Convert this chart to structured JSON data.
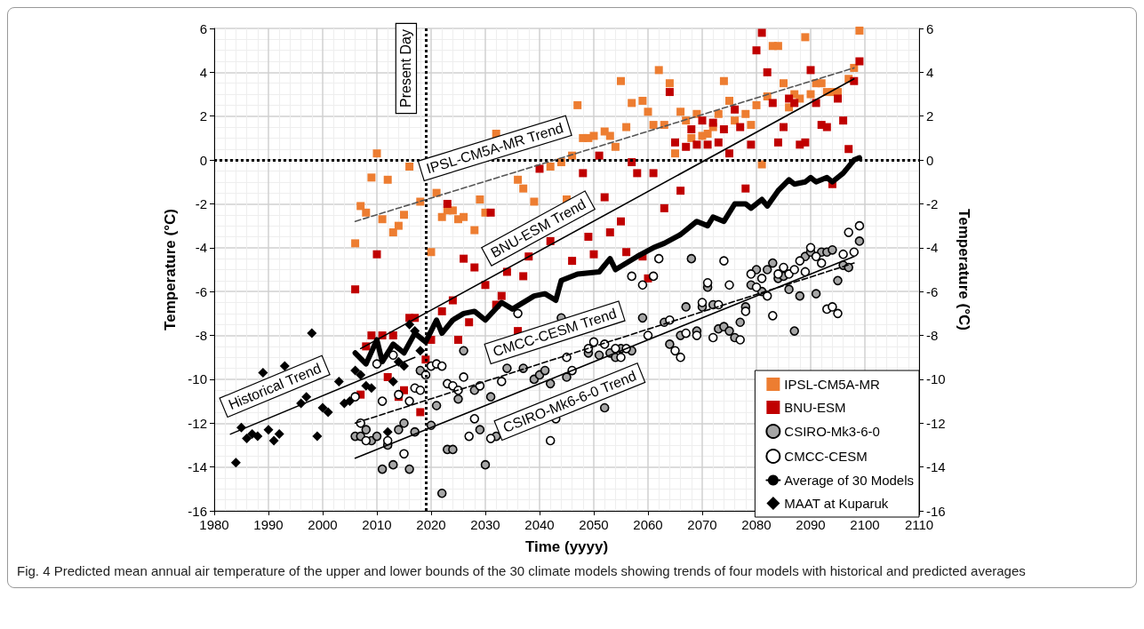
{
  "chart_data": {
    "type": "scatter",
    "xlabel": "Time (yyyy)",
    "ylabel": "Temperature (°C)",
    "y2label": "Temperature (°C)",
    "xlim": [
      1980,
      2110
    ],
    "xticks": [
      1980,
      1990,
      2000,
      2010,
      2020,
      2030,
      2040,
      2050,
      2060,
      2070,
      2080,
      2090,
      2100,
      2110
    ],
    "ylim": [
      -16,
      6
    ],
    "yticks": [
      -16,
      -14,
      -12,
      -10,
      -8,
      -6,
      -4,
      -2,
      0,
      2,
      4,
      6
    ],
    "y2lim": [
      -16,
      6
    ],
    "y2ticks": [
      -16,
      -14,
      -12,
      -10,
      -8,
      -6,
      -4,
      -2,
      0,
      2,
      4,
      6
    ],
    "grid": true,
    "legend": "bottom right",
    "series": [
      {
        "name": "IPSL-CM5A-MR",
        "marker": "square",
        "color": "#ed7d31",
        "x": [
          2006,
          2007,
          2008,
          2009,
          2010,
          2011,
          2012,
          2013,
          2014,
          2015,
          2016,
          2018,
          2020,
          2021,
          2022,
          2023,
          2024,
          2025,
          2026,
          2028,
          2029,
          2030,
          2031,
          2032,
          2036,
          2037,
          2039,
          2042,
          2044,
          2045,
          2046,
          2047,
          2048,
          2049,
          2050,
          2052,
          2053,
          2054,
          2055,
          2056,
          2057,
          2059,
          2060,
          2061,
          2062,
          2063,
          2064,
          2065,
          2066,
          2067,
          2068,
          2069,
          2070,
          2071,
          2072,
          2073,
          2074,
          2075,
          2076,
          2078,
          2079,
          2080,
          2081,
          2082,
          2083,
          2084,
          2085,
          2086,
          2087,
          2088,
          2089,
          2090,
          2091,
          2092,
          2093,
          2094,
          2095,
          2097,
          2098,
          2099
        ],
        "values": [
          -3.8,
          -2.1,
          -2.4,
          -0.8,
          0.3,
          -2.7,
          -0.9,
          -3.3,
          -3.0,
          -2.5,
          -0.3,
          -1.9,
          -4.2,
          -1.5,
          -2.6,
          -2.3,
          -2.3,
          -2.7,
          -2.6,
          -3.2,
          -1.8,
          -2.4,
          null,
          1.2,
          -0.9,
          -1.3,
          -1.9,
          -0.3,
          -0.1,
          -1.8,
          0.2,
          2.5,
          1.0,
          1.0,
          1.1,
          1.3,
          1.1,
          0.6,
          3.6,
          1.5,
          2.6,
          2.7,
          2.2,
          1.6,
          4.1,
          1.6,
          3.5,
          0.3,
          2.2,
          1.8,
          1.0,
          2.1,
          1.1,
          1.2,
          1.5,
          2.1,
          3.6,
          2.7,
          1.8,
          2.1,
          1.6,
          2.5,
          -0.2,
          2.9,
          5.2,
          5.2,
          3.5,
          2.4,
          3.0,
          2.8,
          5.6,
          3.0,
          3.5,
          3.5,
          3.1,
          3.1,
          3.1,
          3.7,
          4.2,
          5.9
        ]
      },
      {
        "name": "BNU-ESM",
        "marker": "square",
        "color": "#c00000",
        "x": [
          2006,
          2007,
          2008,
          2009,
          2010,
          2011,
          2012,
          2013,
          2014,
          2015,
          2016,
          2017,
          2018,
          2019,
          2020,
          2022,
          2023,
          2024,
          2025,
          2026,
          2027,
          2028,
          2030,
          2031,
          2032,
          2033,
          2034,
          2036,
          2037,
          2038,
          2040,
          2042,
          2046,
          2048,
          2049,
          2050,
          2051,
          2052,
          2053,
          2055,
          2056,
          2057,
          2058,
          2059,
          2060,
          2061,
          2063,
          2064,
          2065,
          2066,
          2067,
          2068,
          2069,
          2070,
          2071,
          2072,
          2073,
          2074,
          2075,
          2076,
          2077,
          2078,
          2079,
          2080,
          2081,
          2082,
          2083,
          2084,
          2085,
          2086,
          2087,
          2088,
          2089,
          2090,
          2091,
          2092,
          2093,
          2094,
          2095,
          2096,
          2097,
          2098,
          2099
        ],
        "values": [
          -5.9,
          -10.7,
          -8.5,
          -8.0,
          -4.3,
          -8.0,
          -9.9,
          -8.0,
          -10.8,
          -10.5,
          -7.2,
          -7.2,
          -11.5,
          -9.1,
          -8.2,
          -6.9,
          -2.0,
          -6.4,
          -8.2,
          -4.5,
          -7.4,
          -4.9,
          -5.7,
          -2.4,
          -6.6,
          -6.2,
          -5.1,
          -7.8,
          -5.3,
          -4.4,
          -0.4,
          -3.7,
          -4.6,
          -0.6,
          -3.5,
          -4.3,
          0.2,
          -1.7,
          -3.3,
          -2.8,
          -4.2,
          -0.1,
          -0.6,
          -4.4,
          -5.4,
          -0.6,
          -2.2,
          3.1,
          0.8,
          -1.4,
          0.6,
          1.4,
          0.7,
          1.8,
          0.7,
          1.7,
          0.8,
          1.4,
          0.3,
          2.3,
          1.5,
          -1.3,
          0.7,
          5.0,
          5.8,
          4.0,
          2.6,
          0.8,
          1.5,
          2.8,
          2.6,
          0.7,
          0.8,
          4.1,
          2.6,
          1.6,
          1.5,
          -1.1,
          2.8,
          1.8,
          0.5,
          3.6,
          4.5
        ]
      },
      {
        "name": "CSIRO-Mk3-6-0",
        "marker": "circle",
        "color": "#a6a6a6",
        "x": [
          2006,
          2007,
          2008,
          2009,
          2010,
          2011,
          2012,
          2013,
          2014,
          2015,
          2016,
          2017,
          2018,
          2020,
          2021,
          2022,
          2023,
          2024,
          2025,
          2026,
          2028,
          2029,
          2030,
          2031,
          2032,
          2034,
          2037,
          2039,
          2040,
          2041,
          2042,
          2044,
          2045,
          2049,
          2051,
          2052,
          2053,
          2054,
          2055,
          2057,
          2058,
          2059,
          2063,
          2064,
          2066,
          2067,
          2068,
          2069,
          2070,
          2071,
          2072,
          2073,
          2074,
          2075,
          2076,
          2077,
          2078,
          2079,
          2080,
          2081,
          2082,
          2083,
          2084,
          2085,
          2086,
          2087,
          2088,
          2089,
          2090,
          2091,
          2092,
          2093,
          2094,
          2095,
          2096,
          2097,
          2099
        ],
        "values": [
          -12.6,
          -12.6,
          -12.3,
          -12.8,
          -12.6,
          -14.1,
          -13.0,
          -13.9,
          -12.3,
          -12.0,
          -14.1,
          -12.4,
          -9.6,
          -12.1,
          -11.2,
          -15.2,
          -13.2,
          -13.2,
          -10.9,
          -8.7,
          -10.5,
          -12.3,
          -13.9,
          -10.8,
          -12.6,
          -9.5,
          -9.5,
          -10.0,
          -9.8,
          -9.6,
          -10.2,
          -7.2,
          -9.9,
          -8.8,
          -8.9,
          -11.3,
          -8.8,
          -9.0,
          -8.6,
          -8.7,
          null,
          -7.2,
          -7.4,
          -8.4,
          -8.0,
          -6.7,
          -4.5,
          -7.8,
          -6.7,
          -5.8,
          -6.6,
          -7.7,
          -7.6,
          -7.8,
          -8.1,
          -7.4,
          -6.7,
          -5.7,
          -5.0,
          -6.0,
          -5.0,
          -4.7,
          -5.4,
          -5.3,
          -5.9,
          -7.8,
          -6.2,
          -4.4,
          -4.2,
          -6.1,
          -4.2,
          -4.2,
          -4.1,
          -5.5,
          -4.8,
          -4.9,
          -3.7
        ]
      },
      {
        "name": "CMCC-CESM",
        "marker": "circle",
        "color": "#ffffff",
        "x": [
          2006,
          2007,
          2008,
          2010,
          2011,
          2012,
          2013,
          2014,
          2015,
          2016,
          2017,
          2018,
          2019,
          2020,
          2021,
          2022,
          2023,
          2024,
          2025,
          2026,
          2027,
          2028,
          2029,
          2031,
          2033,
          2034,
          2036,
          2038,
          2039,
          2041,
          2042,
          2043,
          2045,
          2046,
          2048,
          2049,
          2050,
          2051,
          2052,
          2054,
          2055,
          2056,
          2057,
          2059,
          2060,
          2061,
          2062,
          2064,
          2065,
          2066,
          2067,
          2069,
          2070,
          2071,
          2072,
          2073,
          2074,
          2075,
          2077,
          2078,
          2079,
          2080,
          2081,
          2082,
          2083,
          2084,
          2085,
          2086,
          2087,
          2088,
          2089,
          2090,
          2091,
          2092,
          2093,
          2094,
          2095,
          2096,
          2097,
          2098,
          2099
        ],
        "values": [
          -10.8,
          -12.0,
          -12.8,
          -9.3,
          -11.0,
          -12.8,
          -8.9,
          -10.7,
          -13.4,
          -11.0,
          -10.4,
          -10.5,
          -9.8,
          -9.4,
          -9.3,
          -9.4,
          -10.2,
          -10.3,
          -10.5,
          -9.9,
          -12.6,
          -11.8,
          -10.3,
          -12.7,
          -10.1,
          null,
          -7.0,
          null,
          null,
          null,
          -12.8,
          -11.8,
          -9.0,
          -9.6,
          null,
          -8.6,
          -8.3,
          null,
          -8.4,
          -8.6,
          -9.0,
          -8.6,
          -5.3,
          -5.7,
          -8.0,
          -5.3,
          -4.5,
          -7.3,
          -8.7,
          -9.0,
          -7.9,
          -8.0,
          -6.5,
          -5.6,
          -8.1,
          -6.6,
          -4.6,
          -5.7,
          -8.2,
          -6.9,
          -5.2,
          -5.8,
          -5.4,
          -6.2,
          -7.1,
          -5.2,
          -4.9,
          -5.2,
          -5.0,
          -4.6,
          -5.1,
          -4.0,
          -4.4,
          -4.7,
          -6.8,
          -6.7,
          -7.0,
          -4.3,
          -3.3,
          -4.2,
          -3.0
        ]
      },
      {
        "name": "Average of 30 Models",
        "type": "line",
        "marker": "none",
        "line_style": "solid",
        "color": "#000000",
        "x": [
          2006,
          2008,
          2010,
          2011,
          2013,
          2015,
          2017,
          2019,
          2021,
          2022,
          2024,
          2026,
          2028,
          2030,
          2033,
          2035,
          2039,
          2041,
          2043,
          2044,
          2047,
          2051,
          2053,
          2054,
          2058,
          2061,
          2063,
          2066,
          2068,
          2069,
          2071,
          2072,
          2074,
          2076,
          2078,
          2079,
          2081,
          2082,
          2084,
          2086,
          2087,
          2089,
          2090,
          2091,
          2093,
          2094,
          2096,
          2098,
          2099
        ],
        "values": [
          -8.8,
          -9.3,
          -8.2,
          -9.2,
          -8.4,
          -8.8,
          -7.9,
          -8.3,
          -7.3,
          -7.9,
          -7.3,
          -7.0,
          -6.9,
          -7.3,
          -6.5,
          -6.8,
          -6.2,
          -6.1,
          -6.4,
          -5.5,
          -5.2,
          -5.1,
          -4.5,
          -5.0,
          -4.4,
          -4.0,
          -3.8,
          -3.4,
          -3.0,
          -2.8,
          -3.0,
          -2.6,
          -2.8,
          -2.0,
          -2.0,
          -2.2,
          -1.8,
          -2.1,
          -1.4,
          -0.9,
          -1.1,
          -1.0,
          -0.8,
          -1.0,
          -0.8,
          -1.0,
          -0.6,
          0.0,
          0.1
        ]
      },
      {
        "name": "MAAT at Kuparuk",
        "marker": "diamond",
        "color": "#000000",
        "x": [
          1984,
          1985,
          1986,
          1987,
          1988,
          1989,
          1990,
          1991,
          1992,
          1993,
          1996,
          1997,
          1998,
          1999,
          2000,
          2001,
          2003,
          2004,
          2005,
          2006,
          2007,
          2008,
          2009,
          2012,
          2013,
          2014,
          2015,
          2016,
          2017,
          2018
        ],
        "values": [
          -13.8,
          -12.2,
          -12.7,
          -12.5,
          -12.6,
          -9.7,
          -12.3,
          -12.8,
          -12.5,
          -9.4,
          -11.1,
          -10.8,
          -7.9,
          -12.6,
          -11.3,
          -11.5,
          -10.1,
          -11.1,
          -11.0,
          -9.6,
          -9.8,
          -10.3,
          -10.4,
          -12.4,
          -10.1,
          -9.2,
          -9.4,
          -7.5,
          -7.8,
          -8.7
        ]
      },
      {
        "type": "line",
        "marker": "none",
        "line_style": "solid",
        "color": "#000000",
        "x": [
          1983,
          2017
        ],
        "values": [
          -12.5,
          -9.0
        ]
      },
      {
        "type": "line",
        "marker": "none",
        "line_style": "dashed",
        "color": "#555555",
        "x": [
          2006,
          2098
        ],
        "values": [
          -2.8,
          4.2
        ]
      },
      {
        "type": "line",
        "marker": "none",
        "line_style": "solid",
        "color": "#000000",
        "x": [
          2007,
          2098
        ],
        "values": [
          -8.6,
          3.7
        ]
      },
      {
        "type": "line",
        "marker": "none",
        "line_style": "dashed",
        "color": "#000000",
        "x": [
          2006,
          2098
        ],
        "values": [
          -12.0,
          -4.7
        ]
      },
      {
        "type": "line",
        "marker": "none",
        "line_style": "solid",
        "color": "#000000",
        "x": [
          2006,
          2098
        ],
        "values": [
          -13.6,
          -4.4
        ]
      }
    ],
    "ref_lines": [
      {
        "axis": "x",
        "value": 2019,
        "label": "Present Day",
        "line_style": "dotted",
        "color": "#000000"
      },
      {
        "axis": "y",
        "value": 0,
        "line_style": "dotted",
        "color": "#000000"
      }
    ],
    "annotations": [
      "Historical Trend",
      "IPSL-CM5A-MR Trend",
      "BNU-ESM Trend",
      "CMCC-CESM Trend",
      "CSIRO-Mk6-6-0 Trend",
      "Fig. 4 Predicted mean annual air temperature of the upper and lower bounds of the 30 climate models showing trends of four models with historical and predicted averages"
    ]
  }
}
